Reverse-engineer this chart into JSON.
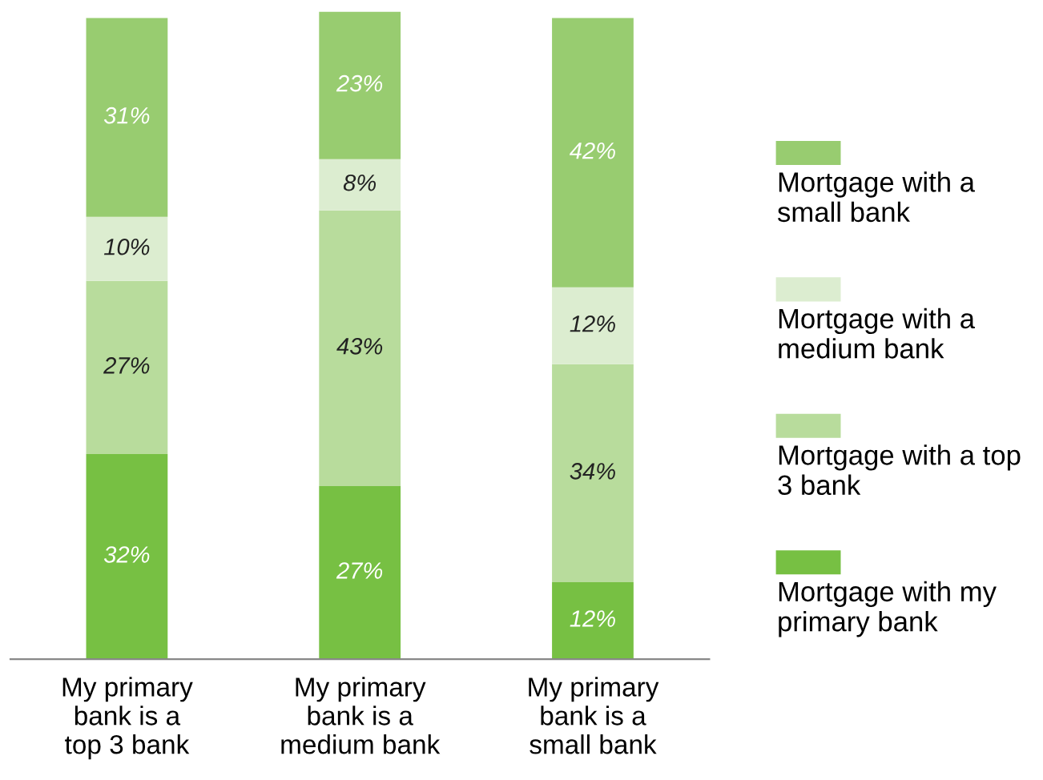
{
  "chart_data": {
    "type": "bar",
    "stacked": true,
    "legend": "right",
    "grid": false,
    "categories": [
      "My primary\nbank is a\ntop 3 bank",
      "My primary\nbank is a\nmedium bank",
      "My primary\nbank is a\nsmall bank"
    ],
    "series": [
      {
        "name": "Mortgage with my primary bank",
        "color": "#77c043",
        "values": [
          32,
          27,
          12
        ],
        "value_labels": [
          "32%",
          "27%",
          "12%"
        ]
      },
      {
        "name": "Mortgage with a top 3 bank",
        "color": "#b8dc9c",
        "values": [
          27,
          43,
          34
        ],
        "value_labels": [
          "27%",
          "43%",
          "34%"
        ]
      },
      {
        "name": "Mortgage with a medium bank",
        "color": "#dcedd0",
        "values": [
          10,
          8,
          12
        ],
        "value_labels": [
          "10%",
          "8%",
          "12%"
        ]
      },
      {
        "name": "Mortgage with a small bank",
        "color": "#98cc70",
        "values": [
          31,
          23,
          42
        ],
        "value_labels": [
          "31%",
          "23%",
          "42%"
        ]
      }
    ]
  }
}
